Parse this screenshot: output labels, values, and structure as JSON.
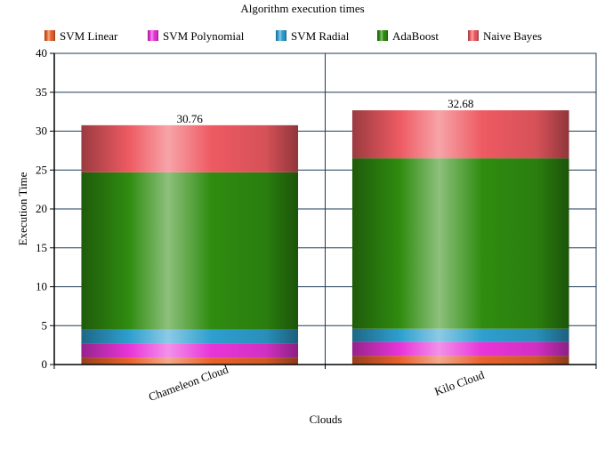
{
  "chart_data": {
    "type": "bar",
    "stacked": true,
    "title": "Algorithm execution times",
    "xlabel": "Clouds",
    "ylabel": "Execution Time",
    "categories": [
      "Chameleon Cloud",
      "Kilo Cloud"
    ],
    "ylim": [
      0,
      40
    ],
    "yticks": [
      0,
      5,
      10,
      15,
      20,
      25,
      30,
      35,
      40
    ],
    "grid": true,
    "legend_position": "top",
    "series": [
      {
        "name": "SVM Linear",
        "values": [
          0.9,
          1.1
        ],
        "color": "#e8622a"
      },
      {
        "name": "SVM Polynomial",
        "values": [
          1.8,
          1.8
        ],
        "color": "#e835d8"
      },
      {
        "name": "SVM Radial",
        "values": [
          1.8,
          1.7
        ],
        "color": "#2e9fcf"
      },
      {
        "name": "AdaBoost",
        "values": [
          20.2,
          21.9
        ],
        "color": "#2f8c10"
      },
      {
        "name": "Naive Bayes",
        "values": [
          6.06,
          6.18
        ],
        "color": "#ee5a62"
      }
    ],
    "totals": [
      "30.76",
      "32.68"
    ]
  }
}
